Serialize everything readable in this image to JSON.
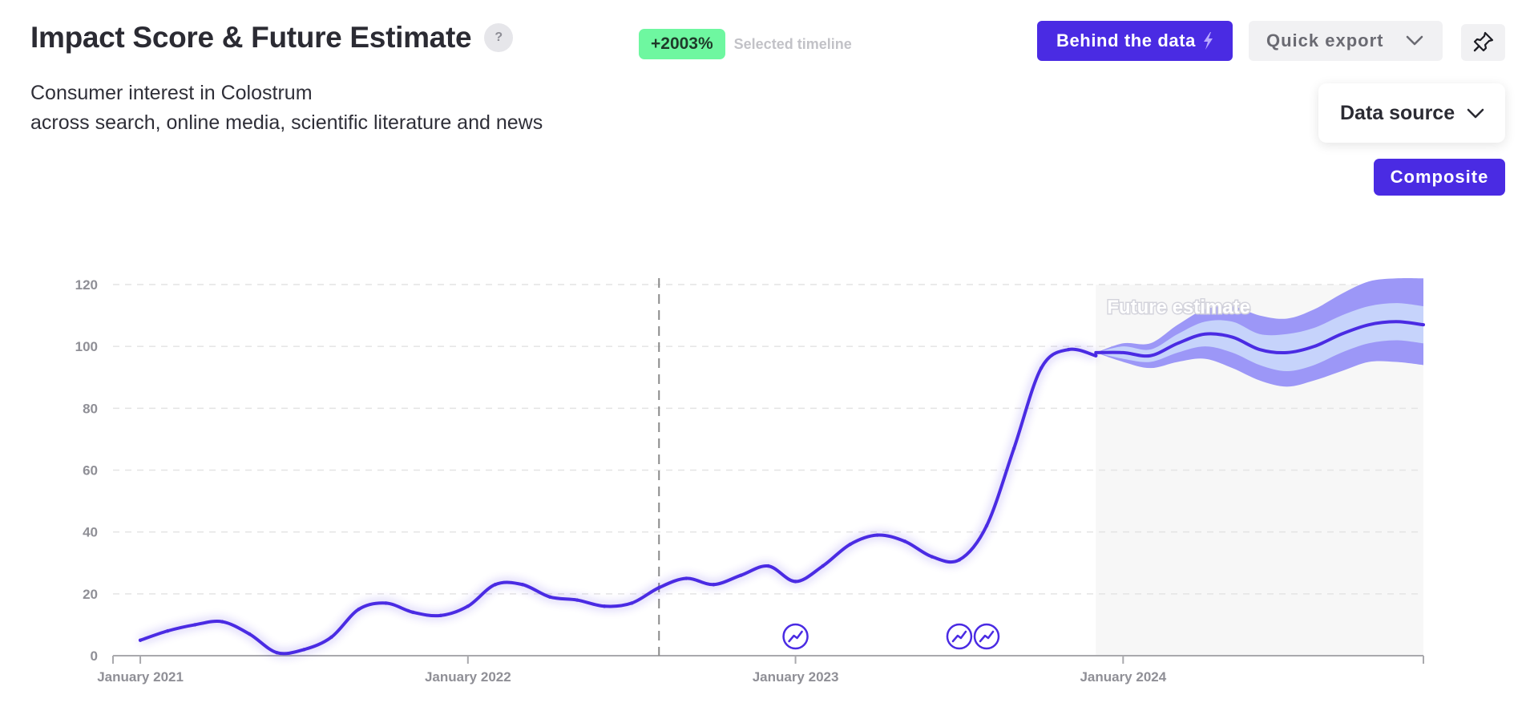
{
  "header": {
    "title": "Impact Score & Future Estimate",
    "help_label": "?",
    "change_badge": "+2003%",
    "change_caption": "Selected timeline",
    "subtitle_line1": "Consumer interest in Colostrum",
    "subtitle_line2": "across search, online media, scientific literature and news"
  },
  "toolbar": {
    "behind_label": "Behind the data",
    "export_label": "Quick export",
    "source_label": "Data source",
    "composite_label": "Composite"
  },
  "colors": {
    "accent": "#4a2be3",
    "badge_green": "#6ef7a0",
    "band_outer": "#9c97f7",
    "band_inner": "#c6d3fb",
    "forecast_bg": "#f7f7f7"
  },
  "chart_data": {
    "type": "line",
    "title": "",
    "xlabel": "",
    "ylabel": "",
    "ylim": [
      0,
      120
    ],
    "yticks": [
      0,
      20,
      40,
      60,
      80,
      100,
      120
    ],
    "xlim": [
      "2020-12",
      "2024-12"
    ],
    "x_tick_labels": [
      {
        "x": "2021-01",
        "label": "January 2021"
      },
      {
        "x": "2022-01",
        "label": "January 2022"
      },
      {
        "x": "2023-01",
        "label": "January 2023"
      },
      {
        "x": "2024-01",
        "label": "January 2024"
      }
    ],
    "grid": true,
    "marker_line": "2022-08",
    "forecast_label": "Future estimate",
    "series": [
      {
        "x": [
          "2021-01",
          "2021-02",
          "2021-03",
          "2021-04",
          "2021-05",
          "2021-06",
          "2021-07",
          "2021-08",
          "2021-09",
          "2021-10",
          "2021-11",
          "2021-12",
          "2022-01",
          "2022-02",
          "2022-03",
          "2022-04",
          "2022-05",
          "2022-06",
          "2022-07",
          "2022-08",
          "2022-09",
          "2022-10",
          "2022-11",
          "2022-12",
          "2023-01",
          "2023-02",
          "2023-03",
          "2023-04",
          "2023-05",
          "2023-06",
          "2023-07",
          "2023-08",
          "2023-09",
          "2023-10",
          "2023-11",
          "2023-12"
        ],
        "values": [
          5,
          8,
          10,
          11,
          7,
          1,
          2,
          6,
          15,
          17,
          14,
          13,
          16,
          23,
          23,
          19,
          18,
          16,
          17,
          22,
          25,
          23,
          26,
          29,
          24,
          29,
          36,
          39,
          37,
          32,
          31,
          42,
          67,
          93,
          99,
          97
        ]
      }
    ],
    "forecast": {
      "x": [
        "2023-12",
        "2024-01",
        "2024-02",
        "2024-03",
        "2024-04",
        "2024-05",
        "2024-06",
        "2024-07",
        "2024-08",
        "2024-09",
        "2024-10",
        "2024-11",
        "2024-12"
      ],
      "mean": [
        98,
        98,
        97,
        101,
        104,
        103,
        99,
        98,
        100,
        104,
        107,
        108,
        107
      ],
      "inner_low": [
        98,
        96,
        95,
        98,
        100,
        98,
        94,
        92,
        94,
        98,
        101,
        102,
        101
      ],
      "inner_high": [
        98,
        100,
        99,
        104,
        108,
        108,
        104,
        104,
        106,
        110,
        113,
        114,
        113
      ],
      "outer_low": [
        98,
        95,
        93,
        95,
        96,
        93,
        89,
        87,
        89,
        92,
        95,
        95,
        94
      ],
      "outer_high": [
        98,
        101,
        101,
        107,
        112,
        113,
        110,
        109,
        112,
        117,
        121,
        122,
        122
      ]
    },
    "event_icons": [
      "2023-01",
      "2023-07",
      "2023-08"
    ]
  }
}
